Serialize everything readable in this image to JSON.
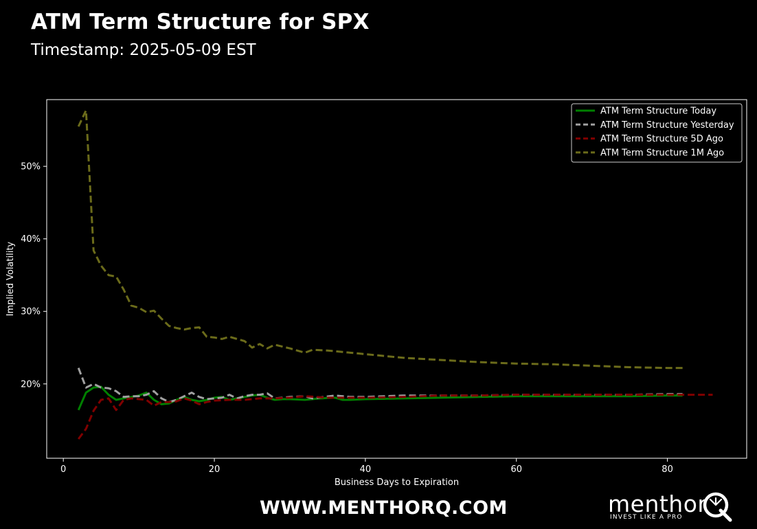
{
  "header": {
    "title": "ATM Term Structure for SPX",
    "subtitle": "Timestamp: 2025-05-09 EST"
  },
  "footer": {
    "url": "WWW.MENTHORQ.COM",
    "brand_name": "menthor",
    "brand_tagline": "INVEST LIKE A PRO",
    "brand_icon": "q-logo-icon"
  },
  "chart_data": {
    "type": "line",
    "xlabel": "Business Days to Expiration",
    "ylabel": "Implied Volatility",
    "xlim": [
      -2.2,
      90.5
    ],
    "ylim": [
      0.0975,
      0.592
    ],
    "xticks": [
      0,
      20,
      40,
      60,
      80
    ],
    "yticks": [
      0.2,
      0.3,
      0.4,
      0.5
    ],
    "ytick_labels": [
      "20%",
      "30%",
      "40%",
      "50%"
    ],
    "grid": false,
    "legend_position": "top-right",
    "series": [
      {
        "name": "ATM Term Structure Today",
        "color": "#008000",
        "style": "solid",
        "x": [
          2,
          3,
          4,
          5,
          6,
          7,
          8,
          9,
          10,
          11,
          12,
          13,
          14,
          15,
          16,
          17,
          18,
          19,
          20,
          21,
          22,
          23,
          24,
          25,
          26,
          27,
          28,
          29,
          30,
          32,
          34,
          36,
          37,
          38,
          40,
          45,
          50,
          55,
          60,
          65,
          70,
          75,
          80,
          82
        ],
        "y": [
          0.164,
          0.188,
          0.195,
          0.196,
          0.185,
          0.178,
          0.18,
          0.182,
          0.184,
          0.188,
          0.178,
          0.172,
          0.173,
          0.178,
          0.182,
          0.178,
          0.176,
          0.178,
          0.181,
          0.182,
          0.178,
          0.18,
          0.182,
          0.184,
          0.185,
          0.181,
          0.178,
          0.179,
          0.179,
          0.178,
          0.18,
          0.181,
          0.178,
          0.178,
          0.179,
          0.18,
          0.181,
          0.182,
          0.183,
          0.183,
          0.183,
          0.183,
          0.184,
          0.184
        ]
      },
      {
        "name": "ATM Term Structure Yesterday",
        "color": "#a0a0a0",
        "style": "dashed",
        "x": [
          2,
          3,
          4,
          5,
          6,
          7,
          8,
          9,
          10,
          11,
          12,
          13,
          14,
          15,
          16,
          17,
          18,
          19,
          20,
          21,
          22,
          23,
          24,
          25,
          26,
          27,
          28,
          30,
          32,
          33,
          36,
          38,
          40,
          45,
          50,
          55,
          60,
          65,
          70,
          75,
          80,
          82
        ],
        "y": [
          0.222,
          0.195,
          0.2,
          0.195,
          0.194,
          0.19,
          0.182,
          0.183,
          0.183,
          0.185,
          0.19,
          0.18,
          0.175,
          0.178,
          0.183,
          0.188,
          0.182,
          0.179,
          0.18,
          0.181,
          0.185,
          0.18,
          0.183,
          0.185,
          0.185,
          0.187,
          0.18,
          0.182,
          0.183,
          0.18,
          0.184,
          0.182,
          0.182,
          0.184,
          0.184,
          0.184,
          0.185,
          0.185,
          0.185,
          0.185,
          0.186,
          0.186
        ]
      },
      {
        "name": "ATM Term Structure 5D Ago",
        "color": "#800000",
        "style": "dashed",
        "x": [
          2,
          3,
          4,
          5,
          6,
          7,
          8,
          9,
          10,
          11,
          12,
          13,
          14,
          15,
          16,
          17,
          18,
          19,
          20,
          22,
          24,
          26,
          28,
          30,
          32,
          35,
          40,
          45,
          50,
          55,
          60,
          65,
          70,
          75,
          80,
          86
        ],
        "y": [
          0.124,
          0.138,
          0.163,
          0.178,
          0.18,
          0.164,
          0.178,
          0.18,
          0.179,
          0.178,
          0.17,
          0.175,
          0.175,
          0.176,
          0.18,
          0.177,
          0.172,
          0.175,
          0.177,
          0.178,
          0.178,
          0.18,
          0.18,
          0.181,
          0.183,
          0.181,
          0.181,
          0.182,
          0.184,
          0.184,
          0.185,
          0.185,
          0.185,
          0.185,
          0.185,
          0.185
        ]
      },
      {
        "name": "ATM Term Structure 1M Ago",
        "color": "#6b6b1a",
        "style": "dashed",
        "x": [
          2,
          3,
          4,
          5,
          6,
          7,
          8,
          9,
          10,
          11,
          12,
          13,
          14,
          15,
          16,
          17,
          18,
          19,
          20,
          21,
          22,
          23,
          24,
          25,
          26,
          27,
          28,
          30,
          32,
          33,
          35,
          40,
          45,
          50,
          55,
          60,
          65,
          70,
          75,
          80,
          82
        ],
        "y": [
          0.555,
          0.577,
          0.384,
          0.363,
          0.35,
          0.348,
          0.33,
          0.308,
          0.305,
          0.299,
          0.301,
          0.29,
          0.28,
          0.277,
          0.275,
          0.277,
          0.278,
          0.265,
          0.264,
          0.262,
          0.265,
          0.262,
          0.259,
          0.25,
          0.255,
          0.249,
          0.254,
          0.249,
          0.243,
          0.247,
          0.246,
          0.241,
          0.236,
          0.233,
          0.23,
          0.228,
          0.227,
          0.225,
          0.223,
          0.222,
          0.222
        ]
      }
    ]
  }
}
